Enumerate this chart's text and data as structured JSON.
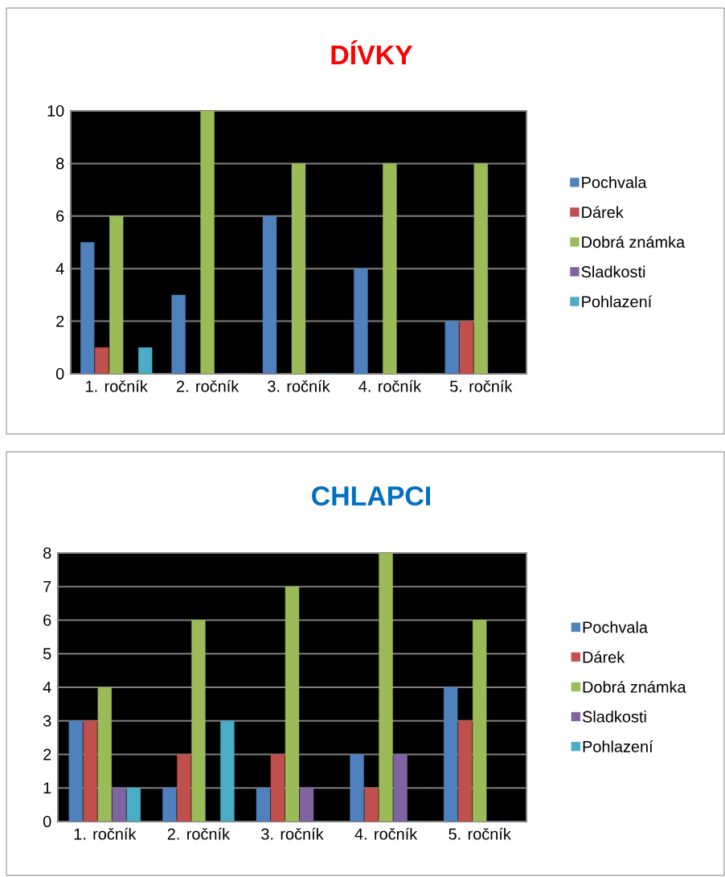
{
  "chart_data": [
    {
      "type": "bar",
      "title": "DÍVKY",
      "categories": [
        "1. ročník",
        "2. ročník",
        "3. ročník",
        "4. ročník",
        "5. ročník"
      ],
      "series": [
        {
          "name": "Pochvala",
          "color": "#4f81bd",
          "values": [
            5,
            3,
            6,
            4,
            2
          ]
        },
        {
          "name": "Dárek",
          "color": "#c0504d",
          "values": [
            1,
            0,
            0,
            0,
            2
          ]
        },
        {
          "name": "Dobrá známka",
          "color": "#9bbb59",
          "values": [
            6,
            10,
            8,
            8,
            8
          ]
        },
        {
          "name": "Sladkosti",
          "color": "#8064a2",
          "values": [
            0,
            0,
            0,
            0,
            0
          ]
        },
        {
          "name": "Pohlazení",
          "color": "#4bacc6",
          "values": [
            1,
            0,
            0,
            0,
            0
          ]
        }
      ],
      "ylim": [
        0,
        10
      ],
      "yticks": [
        0,
        2,
        4,
        6,
        8,
        10
      ],
      "grid": "y",
      "legend": "right"
    },
    {
      "type": "bar",
      "title": "CHLAPCI",
      "categories": [
        "1. ročník",
        "2. ročník",
        "3. ročník",
        "4. ročník",
        "5. ročník"
      ],
      "series": [
        {
          "name": "Pochvala",
          "color": "#4f81bd",
          "values": [
            3,
            1,
            1,
            2,
            4
          ]
        },
        {
          "name": "Dárek",
          "color": "#c0504d",
          "values": [
            3,
            2,
            2,
            1,
            3
          ]
        },
        {
          "name": "Dobrá známka",
          "color": "#9bbb59",
          "values": [
            4,
            6,
            7,
            8,
            6
          ]
        },
        {
          "name": "Sladkosti",
          "color": "#8064a2",
          "values": [
            1,
            0,
            1,
            2,
            0
          ]
        },
        {
          "name": "Pohlazení",
          "color": "#4bacc6",
          "values": [
            1,
            3,
            0,
            0,
            0
          ]
        }
      ],
      "ylim": [
        0,
        8
      ],
      "yticks": [
        0,
        1,
        2,
        3,
        4,
        5,
        6,
        7,
        8
      ],
      "grid": "y",
      "legend": "right"
    }
  ]
}
